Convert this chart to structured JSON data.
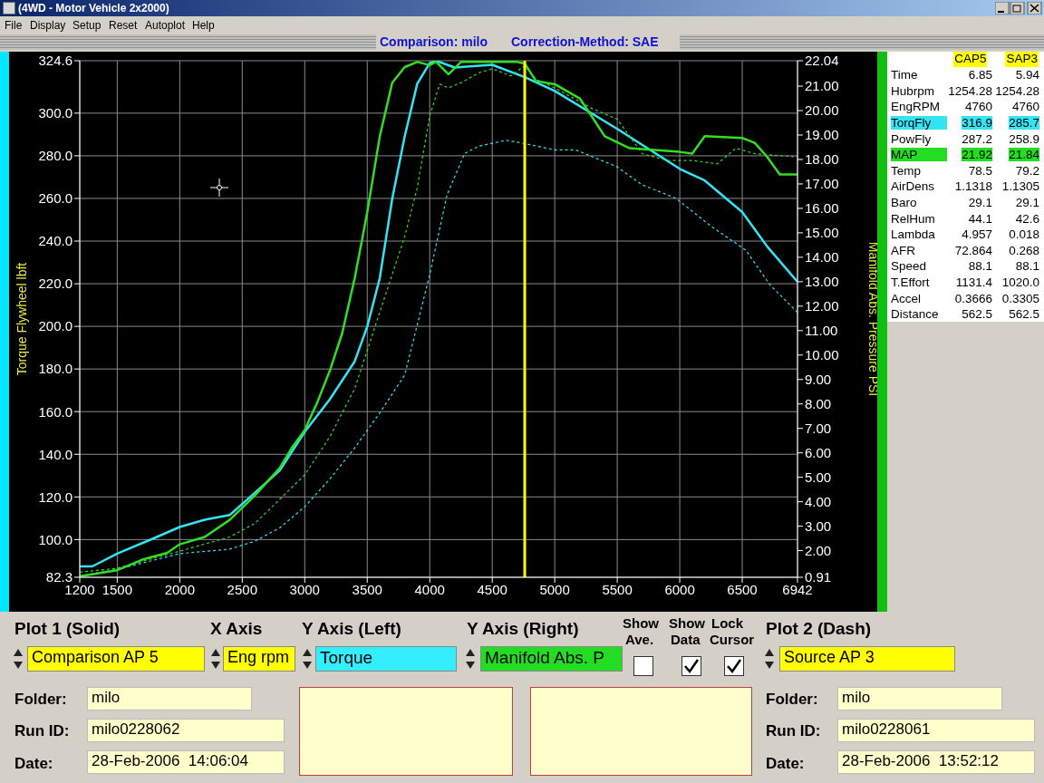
{
  "chart_data": [
    {
      "type": "line",
      "xlabel": null,
      "ylabel": "Torque Flywheel lbft",
      "y2label": "Manifold Abs. Pressure PSI",
      "xlim": [
        1200,
        6942
      ],
      "xticks": [
        1200,
        1500,
        2000,
        2500,
        3000,
        3500,
        4000,
        4500,
        5000,
        5500,
        6000,
        6500,
        6942
      ],
      "ylim": [
        82.3,
        324.6
      ],
      "yticks": [
        {
          "value": 82.3,
          "label": "82.3"
        },
        {
          "value": 100,
          "label": "100.0"
        },
        {
          "value": 120,
          "label": "120.0"
        },
        {
          "value": 140,
          "label": "140.0"
        },
        {
          "value": 160,
          "label": "160.0"
        },
        {
          "value": 180,
          "label": "180.0"
        },
        {
          "value": 200,
          "label": "200.0"
        },
        {
          "value": 220,
          "label": "220.0"
        },
        {
          "value": 240,
          "label": "240.0"
        },
        {
          "value": 260,
          "label": "260.0"
        },
        {
          "value": 280,
          "label": "280.0"
        },
        {
          "value": 300,
          "label": "300.0"
        },
        {
          "value": 324.6,
          "label": "324.6"
        }
      ],
      "y2lim": [
        0.91,
        22.04
      ],
      "y2ticks": [
        {
          "value": 0.91,
          "label": "0.91"
        },
        {
          "value": 2,
          "label": "2.00"
        },
        {
          "value": 3,
          "label": "3.00"
        },
        {
          "value": 4,
          "label": "4.00"
        },
        {
          "value": 5,
          "label": "5.00"
        },
        {
          "value": 6,
          "label": "6.00"
        },
        {
          "value": 7,
          "label": "7.00"
        },
        {
          "value": 8,
          "label": "8.00"
        },
        {
          "value": 9,
          "label": "9.00"
        },
        {
          "value": 10,
          "label": "10.00"
        },
        {
          "value": 11,
          "label": "11.00"
        },
        {
          "value": 12,
          "label": "12.00"
        },
        {
          "value": 13,
          "label": "13.00"
        },
        {
          "value": 14,
          "label": "14.00"
        },
        {
          "value": 15,
          "label": "15.00"
        },
        {
          "value": 16,
          "label": "16.00"
        },
        {
          "value": 17,
          "label": "17.00"
        },
        {
          "value": 18,
          "label": "18.00"
        },
        {
          "value": 19,
          "label": "19.00"
        },
        {
          "value": 20,
          "label": "20.00"
        },
        {
          "value": 21,
          "label": "21.00"
        },
        {
          "value": 22.04,
          "label": "22.04"
        }
      ],
      "grid": true,
      "series": [
        {
          "color": "#33e4f4",
          "line_style": "solid",
          "x": [
            1200,
            1300,
            1500,
            1800,
            2000,
            2200,
            2400,
            2600,
            2800,
            3000,
            3200,
            3400,
            3500,
            3600,
            3700,
            3800,
            3900,
            4000,
            4050,
            4200,
            4500,
            4760,
            5000,
            5500,
            6000,
            6200,
            6500,
            6700,
            6942
          ],
          "values": [
            87.4,
            87.4,
            93.4,
            100.8,
            105.9,
            109.3,
            111.5,
            121.9,
            132.4,
            150.5,
            165.7,
            183.6,
            199.9,
            222.6,
            259.9,
            289.2,
            313.8,
            323.5,
            324.6,
            321.4,
            322.7,
            316.9,
            310.4,
            292.6,
            273.9,
            268.4,
            253.6,
            237.4,
            220.9
          ]
        },
        {
          "color": "#33e4f4",
          "line_style": "dashed",
          "x": [
            1200,
            1500,
            2000,
            2400,
            2600,
            2800,
            3000,
            3200,
            3400,
            3600,
            3800,
            4000,
            4138,
            4279,
            4391,
            4612,
            4760,
            5000,
            5167,
            5500,
            5696,
            5971,
            6250,
            6529,
            6723,
            6942
          ],
          "values": [
            83.0,
            86,
            93.4,
            95.5,
            99.2,
            105.5,
            115.4,
            128.4,
            143.0,
            159.4,
            177.2,
            224.3,
            261.6,
            281.1,
            284.5,
            287.3,
            285.7,
            282.8,
            282.8,
            274.8,
            266.5,
            260,
            247,
            235.7,
            219.4,
            206.5
          ]
        },
        {
          "color": "#33dd22",
          "line_style": "solid",
          "axis": "y2",
          "x": [
            1200,
            1500,
            1700,
            1900,
            2000,
            2200,
            2400,
            2600,
            2800,
            2900,
            3000,
            3100,
            3200,
            3300,
            3400,
            3500,
            3600,
            3700,
            3800,
            3900,
            4000,
            4050,
            4150,
            4250,
            4500,
            4700,
            4760,
            4850,
            5000,
            5200,
            5300,
            5400,
            5600,
            5800,
            6000,
            6100,
            6200,
            6500,
            6600,
            6700,
            6800,
            6942
          ],
          "values": [
            0.95,
            1.2,
            1.63,
            1.91,
            2.26,
            2.56,
            3.26,
            4.25,
            5.38,
            6.23,
            6.93,
            8.06,
            9.35,
            10.9,
            13.15,
            15.84,
            18.94,
            21.14,
            21.78,
            21.99,
            21.86,
            22.0,
            21.49,
            21.99,
            21.99,
            21.99,
            21.92,
            21.21,
            21.08,
            20.5,
            19.73,
            18.95,
            18.46,
            18.39,
            18.31,
            18.24,
            18.95,
            18.88,
            18.68,
            18.1,
            17.39,
            17.39
          ]
        },
        {
          "color": "#33dd22",
          "line_style": "dashed",
          "axis": "y2",
          "x": [
            1200,
            1500,
            2000,
            2400,
            2600,
            2800,
            3000,
            3200,
            3400,
            3600,
            3800,
            3900,
            4000,
            4080,
            4150,
            4250,
            4400,
            4500,
            4650,
            4760,
            4850,
            5000,
            5300,
            5500,
            5700,
            5900,
            6100,
            6300,
            6450,
            6600,
            6942
          ],
          "values": [
            1.12,
            1.28,
            1.98,
            2.56,
            3.11,
            4.1,
            5.1,
            6.65,
            8.63,
            11.75,
            14.85,
            16.84,
            19.8,
            21.08,
            20.93,
            21.14,
            21.56,
            21.71,
            21.42,
            21.84,
            21.28,
            20.93,
            20.08,
            19.65,
            18.24,
            17.96,
            17.96,
            17.82,
            18.46,
            18.24,
            18.1
          ]
        }
      ],
      "ref_lines": [
        {
          "axis": "x",
          "value": 4760,
          "color": "#ffff00"
        }
      ]
    },
    {
      "type": "other",
      "annotations": [
        "CAP5",
        "SAP3",
        "Time",
        "6.85",
        "5.94",
        "Hubrpm",
        "1254.28",
        "1254.28",
        "EngRPM",
        "4760",
        "4760",
        "TorqFly",
        "316.9",
        "285.7",
        "PowFly",
        "287.2",
        "258.9",
        "MAP",
        "21.92",
        "21.84",
        "Temp",
        "78.5",
        "79.2",
        "AirDens",
        "1.1318",
        "1.1305",
        "Baro",
        "29.1",
        "29.1",
        "RelHum",
        "44.1",
        "42.6",
        "Lambda",
        "4.957",
        "0.018",
        "AFR",
        "72.864",
        "0.268",
        "Speed",
        "88.1",
        "88.1",
        "T.Effort",
        "1131.4",
        "1020.0",
        "Accel",
        "0.3666",
        "0.3305",
        "Distance",
        "562.5",
        "562.5"
      ]
    },
    {
      "type": "other",
      "annotations": [
        "(4WD - Motor Vehicle 2x2000)",
        "File",
        "Display",
        "Setup",
        "Reset",
        "Autoplot",
        "Help",
        "Comparison: milo",
        "Correction-Method: SAE",
        "Plot 1 (Solid)",
        "X Axis",
        "Y Axis (Left)",
        "Y Axis (Right)",
        "Show",
        "Ave.",
        "Show",
        "Data",
        "Lock",
        "Cursor",
        "Plot 2 (Dash)",
        "Comparison AP 5",
        "Eng rpm",
        "Torque",
        "Manifold Abs. P",
        "Source AP 3",
        "Folder:",
        "milo",
        "Run ID:",
        "milo0228062",
        "Date:",
        "28-Feb-2006  14:06:04",
        "Folder:",
        "milo",
        "Run ID:",
        "milo0228061",
        "Date:",
        "28-Feb-2006  13:52:12"
      ]
    }
  ]
}
